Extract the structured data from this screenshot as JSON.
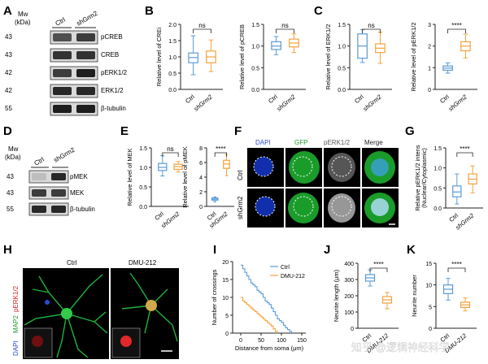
{
  "panels": {
    "A": {
      "letter": "A",
      "mw_label": "Mw\n(kDa)",
      "mw_line1": "Mw",
      "mw_line2": "(kDa)",
      "lanes": [
        "Ctrl",
        "shGrm2"
      ],
      "markers": [
        "43",
        "43",
        "42",
        "42",
        "55"
      ],
      "bands": [
        "pCREB",
        "CREB",
        "pERK1/2",
        "ERK1/2",
        "β-tubulin"
      ]
    },
    "B": {
      "letter": "B",
      "charts": [
        {
          "ylabel": "Relative level of CREB",
          "ylabel_visible": "Relative level of CREi",
          "yticks": [
            "0.0",
            "0.5",
            "1.0",
            "1.5",
            "2.0"
          ],
          "ymax": 2.0,
          "sig": "ns",
          "categories": [
            "Ctrl",
            "shGrm2"
          ],
          "boxes": [
            {
              "min": 0.45,
              "q1": 0.82,
              "med": 0.98,
              "q3": 1.12,
              "max": 1.65
            },
            {
              "min": 0.55,
              "q1": 0.82,
              "med": 1.0,
              "q3": 1.18,
              "max": 1.52
            }
          ]
        },
        {
          "ylabel": "Relative level of pCREB",
          "yticks": [
            "0.0",
            "0.5",
            "1.0",
            "1.5"
          ],
          "ymax": 1.5,
          "sig": "ns",
          "categories": [
            "Ctrl",
            "shGrm2"
          ],
          "boxes": [
            {
              "min": 0.8,
              "q1": 0.92,
              "med": 1.0,
              "q3": 1.1,
              "max": 1.22
            },
            {
              "min": 0.85,
              "q1": 0.98,
              "med": 1.07,
              "q3": 1.16,
              "max": 1.28
            }
          ]
        }
      ]
    },
    "C": {
      "letter": "C",
      "charts": [
        {
          "ylabel": "Relative level of ERK1/2",
          "yticks": [
            "0.0",
            "0.5",
            "1.0",
            "1.5"
          ],
          "ymax": 1.5,
          "sig": "ns",
          "categories": [
            "Ctrl",
            "shGrm2"
          ],
          "boxes": [
            {
              "min": 0.62,
              "q1": 0.72,
              "med": 1.0,
              "q3": 1.28,
              "max": 1.38
            },
            {
              "min": 0.6,
              "q1": 0.85,
              "med": 0.95,
              "q3": 1.05,
              "max": 1.32
            }
          ]
        },
        {
          "ylabel": "Relative level of pERK1/2",
          "yticks": [
            "0",
            "1",
            "2",
            "3"
          ],
          "ymax": 3.0,
          "sig": "****",
          "categories": [
            "Ctrl",
            "shGrm2"
          ],
          "boxes": [
            {
              "min": 0.75,
              "q1": 0.88,
              "med": 0.98,
              "q3": 1.08,
              "max": 1.22
            },
            {
              "min": 1.45,
              "q1": 1.78,
              "med": 2.0,
              "q3": 2.2,
              "max": 2.55
            }
          ]
        }
      ]
    },
    "D": {
      "letter": "D",
      "mw_line1": "Mw",
      "mw_line2": "(kDa)",
      "lanes": [
        "Ctrl",
        "shGrm2"
      ],
      "markers": [
        "43",
        "43",
        "55"
      ],
      "bands": [
        "pMEK",
        "MEK",
        "β-tubulin"
      ]
    },
    "E": {
      "letter": "E",
      "charts": [
        {
          "ylabel": "Relative level of MEK",
          "yticks": [
            "0.0",
            "0.5",
            "1.0",
            "1.5"
          ],
          "ymax": 1.5,
          "sig": "ns",
          "categories": [
            "Ctrl",
            "shGrm2"
          ],
          "boxes": [
            {
              "min": 0.78,
              "q1": 0.92,
              "med": 1.0,
              "q3": 1.1,
              "max": 1.3
            },
            {
              "min": 0.88,
              "q1": 0.95,
              "med": 1.02,
              "q3": 1.08,
              "max": 1.15
            }
          ]
        },
        {
          "ylabel": "Relative level of pMEK",
          "yticks": [
            "0",
            "2",
            "4",
            "6",
            "8"
          ],
          "ymax": 8,
          "sig": "****",
          "categories": [
            "Ctrl",
            "shGrm2"
          ],
          "boxes": [
            {
              "min": 0.6,
              "q1": 0.85,
              "med": 1.0,
              "q3": 1.15,
              "max": 1.3
            },
            {
              "min": 4.2,
              "q1": 5.2,
              "med": 5.8,
              "q3": 6.3,
              "max": 7.1
            }
          ]
        }
      ]
    },
    "F": {
      "letter": "F",
      "columns": [
        "DAPI",
        "GFP",
        "pERK1/2",
        "Merge"
      ],
      "rows": [
        "Ctrl",
        "shGrm2"
      ]
    },
    "G": {
      "letter": "G",
      "chart": {
        "ylabel": "Relative pERK1/2 intens (Nuclear/Cytoplasmic)",
        "ylabel_line1": "Relative pERK1/2 intens",
        "ylabel_line2": "(Nuclear/Cytoplasmic)",
        "yticks": [
          "0.0",
          "0.5",
          "1.0",
          "1.5"
        ],
        "ymax": 1.5,
        "sig": "****",
        "categories": [
          "Ctrl",
          "shGrm2"
        ],
        "boxes": [
          {
            "min": 0.1,
            "q1": 0.28,
            "med": 0.4,
            "q3": 0.55,
            "max": 0.85
          },
          {
            "min": 0.38,
            "q1": 0.6,
            "med": 0.72,
            "q3": 0.85,
            "max": 1.05
          }
        ]
      }
    },
    "H": {
      "letter": "H",
      "columns": [
        "Ctrl",
        "DMU-212"
      ],
      "side_labels": [
        "DAPI",
        "MAP2",
        "pERK1/2"
      ]
    },
    "I": {
      "letter": "I",
      "chart_data": {
        "type": "line",
        "xlabel": "Distance from soma (μm)",
        "ylabel": "Number of crossings",
        "xticks": [
          "0",
          "50",
          "100",
          "150"
        ],
        "xlim": [
          -20,
          160
        ],
        "yticks": [
          "0",
          "5",
          "10",
          "15",
          "20"
        ],
        "ylim": [
          0,
          20
        ],
        "legend_position": "top-right",
        "series": [
          {
            "name": "Ctrl",
            "color": "#5b9bd5",
            "x": [
              0,
              5,
              10,
              15,
              20,
              25,
              30,
              35,
              40,
              45,
              50,
              55,
              60,
              65,
              70,
              75,
              80,
              85,
              90,
              95,
              100,
              105,
              110,
              115,
              120,
              125
            ],
            "y": [
              19,
              18,
              17,
              16,
              15,
              14,
              13.5,
              13,
              12,
              11.5,
              11,
              10,
              9,
              8.5,
              8,
              7,
              6,
              5,
              4,
              3.5,
              3,
              2.2,
              1.5,
              1,
              0.5,
              0
            ]
          },
          {
            "name": "DMU-212",
            "color": "#f4a23c",
            "x": [
              0,
              5,
              10,
              15,
              20,
              25,
              30,
              35,
              40,
              45,
              50,
              55,
              60,
              65,
              70,
              75,
              80,
              85,
              90
            ],
            "y": [
              10,
              9,
              8.5,
              8,
              7.5,
              7,
              6.5,
              6,
              5.5,
              5,
              4.5,
              4,
              3.5,
              3,
              2.5,
              2,
              1.2,
              0.5,
              0
            ]
          }
        ]
      }
    },
    "J": {
      "letter": "J",
      "chart": {
        "ylabel": "Neurite length (μm)",
        "yticks": [
          "0",
          "100",
          "200",
          "300",
          "400"
        ],
        "ymax": 400,
        "sig": "****",
        "categories": [
          "Ctrl",
          "DMU-212"
        ],
        "boxes": [
          {
            "min": 260,
            "q1": 290,
            "med": 310,
            "q3": 330,
            "max": 360
          },
          {
            "min": 120,
            "q1": 155,
            "med": 175,
            "q3": 195,
            "max": 220
          }
        ]
      }
    },
    "K": {
      "letter": "K",
      "chart": {
        "ylabel": "Neurite number",
        "yticks": [
          "0",
          "5",
          "10",
          "15"
        ],
        "ymax": 15,
        "sig": "****",
        "categories": [
          "Ctrl",
          "DMU-212"
        ],
        "boxes": [
          {
            "min": 6.5,
            "q1": 8,
            "med": 9,
            "q3": 10,
            "max": 11.5
          },
          {
            "min": 4,
            "q1": 4.8,
            "med": 5.4,
            "q3": 6,
            "max": 7
          }
        ]
      }
    }
  },
  "colors": {
    "ctrl": "#5b9bd5",
    "treat": "#f4a23c",
    "ink": "#222222"
  },
  "watermark": "知乎 @逻辑神经科学"
}
